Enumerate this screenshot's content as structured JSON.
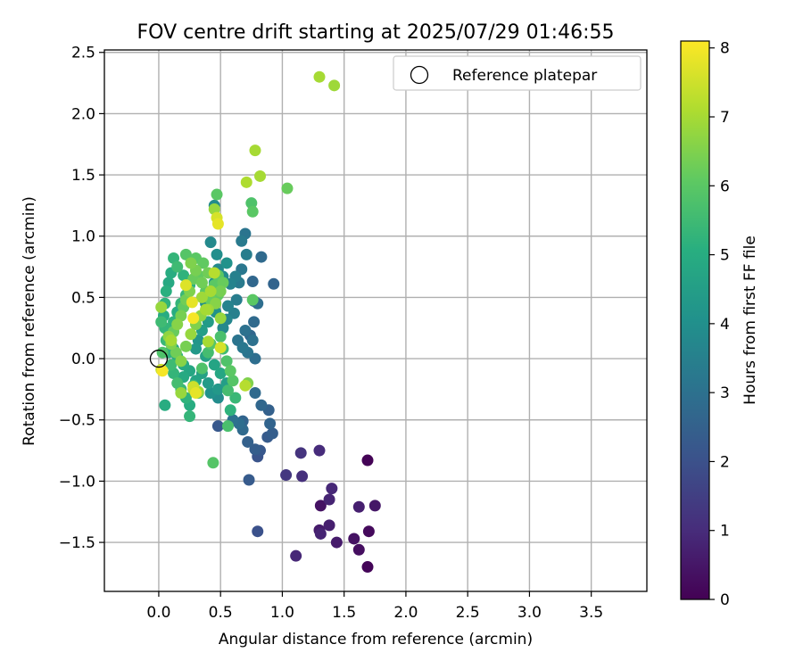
{
  "chart_data": {
    "type": "scatter",
    "title": "FOV centre drift starting at 2025/07/29 01:46:55",
    "xlabel": "Angular distance from reference (arcmin)",
    "ylabel": "Rotation from reference (arcmin)",
    "xlim": [
      -0.44,
      3.95
    ],
    "ylim": [
      -1.9,
      2.52
    ],
    "xticks": [
      "0.0",
      "0.5",
      "1.0",
      "1.5",
      "2.0",
      "2.5",
      "3.0",
      "3.5"
    ],
    "xtick_values": [
      0,
      0.5,
      1,
      1.5,
      2,
      2.5,
      3,
      3.5
    ],
    "yticks": [
      "−1.5",
      "−1.0",
      "−0.5",
      "0.0",
      "0.5",
      "1.0",
      "1.5",
      "2.0",
      "2.5"
    ],
    "ytick_values": [
      -1.5,
      -1,
      -0.5,
      0,
      0.5,
      1,
      1.5,
      2,
      2.5
    ],
    "grid": true,
    "legend": {
      "placement": "top-right",
      "entries": [
        "Reference platepar"
      ]
    },
    "reference_point": {
      "x": 0,
      "y": 0
    },
    "colorbar": {
      "label": "Hours from first FF file",
      "colormap": "viridis",
      "range": [
        0,
        8.1
      ],
      "ticks": [
        "0",
        "1",
        "2",
        "3",
        "4",
        "5",
        "6",
        "7",
        "8"
      ],
      "tick_values": [
        0,
        1,
        2,
        3,
        4,
        5,
        6,
        7,
        8
      ]
    },
    "series": [
      {
        "points": [
          [
            1.69,
            -0.83,
            0.05
          ],
          [
            1.69,
            -1.7,
            0.1
          ],
          [
            1.7,
            -1.41,
            0.2
          ],
          [
            1.62,
            -1.56,
            0.3
          ],
          [
            1.58,
            -1.47,
            0.4
          ],
          [
            1.75,
            -1.2,
            0.5
          ],
          [
            1.62,
            -1.21,
            0.7
          ],
          [
            1.44,
            -1.5,
            0.6
          ],
          [
            1.38,
            -1.36,
            0.7
          ],
          [
            1.4,
            -1.06,
            0.9
          ],
          [
            1.38,
            -1.15,
            0.8
          ],
          [
            1.31,
            -1.43,
            0.8
          ],
          [
            1.31,
            -1.2,
            0.4
          ],
          [
            1.3,
            -0.75,
            1.0
          ],
          [
            1.15,
            -0.77,
            1.2
          ],
          [
            1.16,
            -0.96,
            1.1
          ],
          [
            1.03,
            -0.95,
            1.3
          ],
          [
            1.11,
            -1.61,
            0.9
          ],
          [
            1.3,
            -1.4,
            0.6
          ],
          [
            0.8,
            -1.41,
            2.0
          ],
          [
            0.73,
            -0.99,
            2.3
          ],
          [
            0.8,
            -0.8,
            2.1
          ],
          [
            0.82,
            -0.75,
            2.2
          ],
          [
            0.78,
            -0.74,
            2.4
          ],
          [
            0.72,
            -0.68,
            2.5
          ],
          [
            0.88,
            -0.64,
            2.3
          ],
          [
            0.92,
            -0.61,
            2.4
          ],
          [
            0.9,
            -0.53,
            2.6
          ],
          [
            0.89,
            -0.42,
            2.5
          ],
          [
            0.83,
            -0.38,
            2.7
          ],
          [
            0.78,
            -0.28,
            2.8
          ],
          [
            0.68,
            -0.51,
            2.6
          ],
          [
            0.65,
            -0.53,
            2.9
          ],
          [
            0.48,
            -0.55,
            2.2
          ],
          [
            0.68,
            -0.58,
            2.8
          ],
          [
            0.6,
            -0.5,
            3.0
          ],
          [
            0.93,
            0.61,
            2.6
          ],
          [
            0.83,
            0.83,
            2.8
          ],
          [
            0.76,
            0.63,
            2.7
          ],
          [
            0.77,
            0.47,
            2.6
          ],
          [
            0.8,
            0.45,
            2.9
          ],
          [
            0.77,
            0.3,
            2.8
          ],
          [
            0.74,
            0.19,
            2.7
          ],
          [
            0.76,
            0.15,
            3.0
          ],
          [
            0.72,
            0.05,
            3.1
          ],
          [
            0.78,
            0.0,
            2.9
          ],
          [
            0.7,
            0.23,
            3.0
          ],
          [
            0.68,
            0.09,
            3.2
          ],
          [
            0.64,
            0.15,
            3.1
          ],
          [
            0.7,
            1.02,
            3.1
          ],
          [
            0.67,
            0.96,
            3.3
          ],
          [
            0.71,
            0.85,
            3.4
          ],
          [
            0.67,
            0.73,
            3.2
          ],
          [
            0.65,
            0.62,
            3.3
          ],
          [
            0.62,
            0.67,
            3.5
          ],
          [
            0.58,
            0.61,
            3.6
          ],
          [
            0.63,
            0.48,
            3.4
          ],
          [
            0.61,
            0.37,
            3.5
          ],
          [
            0.56,
            0.43,
            3.6
          ],
          [
            0.55,
            0.32,
            3.7
          ],
          [
            0.52,
            0.25,
            3.8
          ],
          [
            0.45,
            1.25,
            3.9
          ],
          [
            0.42,
            0.95,
            3.8
          ],
          [
            0.47,
            0.85,
            4.0
          ],
          [
            0.55,
            0.78,
            4.1
          ],
          [
            0.48,
            0.73,
            3.8
          ],
          [
            0.52,
            0.67,
            3.9
          ],
          [
            0.45,
            0.62,
            4.2
          ],
          [
            0.42,
            0.55,
            4.3
          ],
          [
            0.38,
            0.45,
            4.0
          ],
          [
            0.46,
            0.38,
            4.1
          ],
          [
            0.4,
            0.3,
            4.4
          ],
          [
            0.35,
            0.23,
            4.5
          ],
          [
            0.32,
            0.15,
            4.2
          ],
          [
            0.3,
            0.08,
            4.3
          ],
          [
            0.38,
            0.02,
            4.6
          ],
          [
            0.45,
            -0.05,
            4.7
          ],
          [
            0.5,
            -0.12,
            4.8
          ],
          [
            0.55,
            -0.2,
            4.5
          ],
          [
            0.48,
            -0.25,
            4.3
          ],
          [
            0.48,
            -0.32,
            3.9
          ],
          [
            0.42,
            -0.28,
            4.1
          ],
          [
            0.4,
            -0.2,
            4.4
          ],
          [
            0.35,
            -0.12,
            4.6
          ],
          [
            0.3,
            -0.18,
            4.7
          ],
          [
            0.25,
            -0.1,
            4.8
          ],
          [
            0.2,
            -0.05,
            4.9
          ],
          [
            0.15,
            0.02,
            5.0
          ],
          [
            0.12,
            0.08,
            4.7
          ],
          [
            0.1,
            0.15,
            4.8
          ],
          [
            0.08,
            0.22,
            5.1
          ],
          [
            0.12,
            0.3,
            5.2
          ],
          [
            0.15,
            0.38,
            5.0
          ],
          [
            0.18,
            0.45,
            5.3
          ],
          [
            0.22,
            0.52,
            5.4
          ],
          [
            0.25,
            0.6,
            5.1
          ],
          [
            0.2,
            0.68,
            5.2
          ],
          [
            0.15,
            0.75,
            5.5
          ],
          [
            0.12,
            0.82,
            5.3
          ],
          [
            0.1,
            0.7,
            5.0
          ],
          [
            0.08,
            0.62,
            4.9
          ],
          [
            0.06,
            0.55,
            5.1
          ],
          [
            0.05,
            0.45,
            5.2
          ],
          [
            0.04,
            0.35,
            5.0
          ],
          [
            0.05,
            0.25,
            5.3
          ],
          [
            0.06,
            0.15,
            5.4
          ],
          [
            0.08,
            0.05,
            5.2
          ],
          [
            0.1,
            -0.05,
            5.5
          ],
          [
            0.12,
            -0.12,
            5.3
          ],
          [
            0.15,
            -0.2,
            5.6
          ],
          [
            0.18,
            -0.25,
            5.4
          ],
          [
            0.22,
            -0.32,
            5.2
          ],
          [
            0.25,
            -0.38,
            5.0
          ],
          [
            0.2,
            -0.15,
            4.9
          ],
          [
            0.28,
            -0.22,
            5.5
          ],
          [
            0.32,
            -0.28,
            5.7
          ],
          [
            0.35,
            -0.08,
            5.8
          ],
          [
            0.4,
            0.05,
            5.6
          ],
          [
            0.42,
            0.12,
            5.9
          ],
          [
            0.5,
            0.18,
            5.7
          ],
          [
            0.52,
            0.08,
            5.5
          ],
          [
            0.55,
            -0.02,
            5.8
          ],
          [
            0.58,
            -0.1,
            6.0
          ],
          [
            0.6,
            -0.18,
            5.9
          ],
          [
            0.56,
            -0.26,
            5.6
          ],
          [
            0.62,
            -0.32,
            5.4
          ],
          [
            0.58,
            -0.42,
            5.2
          ],
          [
            0.56,
            -0.55,
            5.7
          ],
          [
            0.25,
            -0.47,
            5.3
          ],
          [
            0.05,
            -0.38,
            5.0
          ],
          [
            0.44,
            -0.85,
            5.9
          ],
          [
            0.02,
            0.3,
            5.5
          ],
          [
            0.03,
            0.05,
            5.8
          ],
          [
            0.45,
            0.6,
            6.0
          ],
          [
            0.48,
            0.52,
            6.1
          ],
          [
            0.42,
            0.48,
            6.2
          ],
          [
            0.38,
            0.55,
            6.0
          ],
          [
            0.35,
            0.62,
            6.3
          ],
          [
            0.32,
            0.68,
            6.1
          ],
          [
            0.3,
            0.72,
            6.4
          ],
          [
            0.28,
            0.65,
            6.2
          ],
          [
            0.25,
            0.55,
            6.5
          ],
          [
            0.22,
            0.48,
            6.3
          ],
          [
            0.2,
            0.42,
            6.1
          ],
          [
            0.18,
            0.35,
            6.4
          ],
          [
            0.15,
            0.28,
            6.6
          ],
          [
            0.12,
            0.22,
            6.2
          ],
          [
            0.1,
            0.12,
            6.5
          ],
          [
            0.08,
            0.18,
            6.7
          ],
          [
            0.14,
            0.05,
            6.3
          ],
          [
            0.18,
            -0.02,
            6.6
          ],
          [
            0.22,
            0.1,
            6.4
          ],
          [
            0.26,
            0.2,
            6.8
          ],
          [
            0.3,
            0.28,
            6.5
          ],
          [
            0.34,
            0.35,
            6.7
          ],
          [
            0.4,
            0.4,
            6.9
          ],
          [
            0.46,
            0.45,
            6.6
          ],
          [
            0.5,
            0.55,
            6.4
          ],
          [
            0.52,
            0.62,
            6.2
          ],
          [
            0.48,
            0.68,
            6.0
          ],
          [
            0.4,
            0.7,
            6.3
          ],
          [
            0.36,
            0.78,
            6.1
          ],
          [
            0.3,
            0.82,
            6.0
          ],
          [
            0.26,
            0.78,
            6.5
          ],
          [
            0.22,
            0.85,
            5.9
          ],
          [
            0.02,
            0.42,
            6.8
          ],
          [
            0.47,
            1.34,
            6.0
          ],
          [
            0.75,
            1.27,
            5.8
          ],
          [
            0.76,
            1.2,
            6.0
          ],
          [
            1.04,
            1.39,
            6.2
          ],
          [
            0.71,
            1.44,
            7.1
          ],
          [
            0.82,
            1.49,
            7.0
          ],
          [
            0.78,
            1.7,
            7.0
          ],
          [
            0.76,
            0.48,
            6.0
          ],
          [
            0.45,
            1.22,
            6.8
          ],
          [
            0.48,
            1.1,
            7.8
          ],
          [
            0.47,
            1.15,
            7.6
          ],
          [
            0.72,
            -0.2,
            6.5
          ],
          [
            0.7,
            -0.22,
            7.2
          ],
          [
            0.4,
            0.14,
            7.0
          ],
          [
            0.5,
            0.09,
            7.6
          ],
          [
            0.28,
            -0.25,
            7.1
          ],
          [
            0.3,
            -0.28,
            7.8
          ],
          [
            0.28,
            -0.23,
            7.5
          ],
          [
            0.32,
            -0.27,
            6.9
          ],
          [
            0.18,
            -0.28,
            6.8
          ],
          [
            0.45,
            0.7,
            7.2
          ],
          [
            0.5,
            0.33,
            6.8
          ],
          [
            0.42,
            0.55,
            7.0
          ],
          [
            0.35,
            0.5,
            6.9
          ],
          [
            0.38,
            0.4,
            7.0
          ],
          [
            0.1,
            0.15,
            7.0
          ],
          [
            0.02,
            -0.09,
            7.4
          ],
          [
            0.03,
            -0.1,
            8.0
          ],
          [
            0.27,
            0.46,
            7.8
          ],
          [
            0.28,
            0.33,
            8.0
          ],
          [
            0.22,
            0.6,
            7.7
          ],
          [
            1.3,
            2.3,
            7.0
          ],
          [
            1.42,
            2.23,
            6.9
          ]
        ]
      }
    ]
  }
}
